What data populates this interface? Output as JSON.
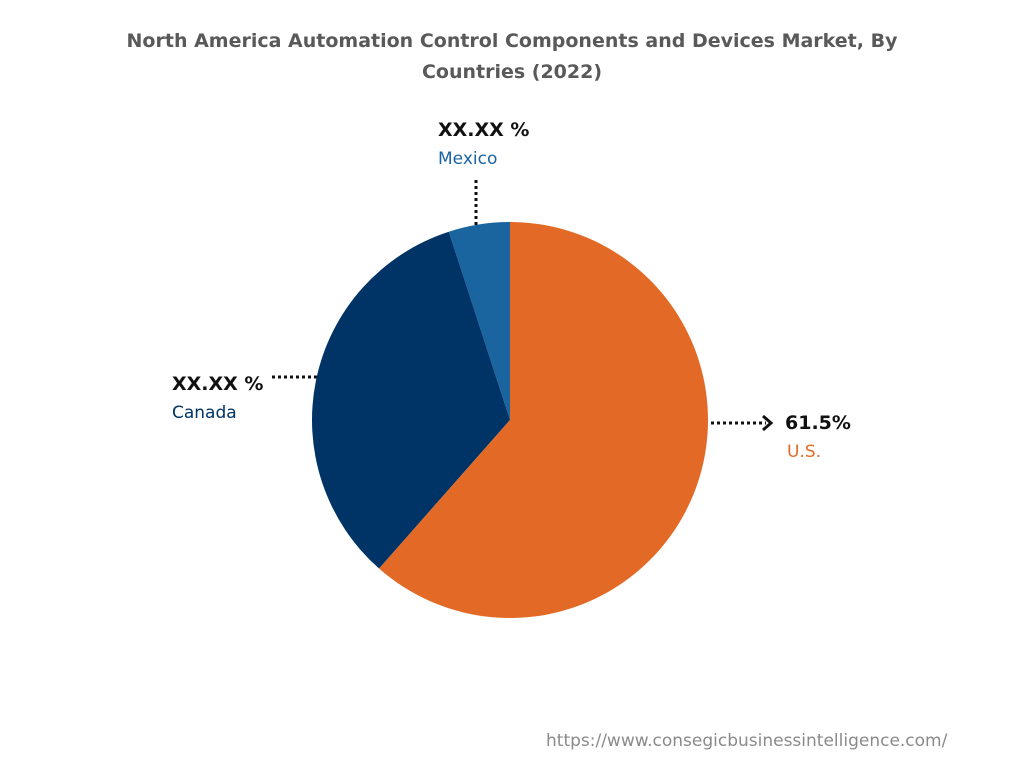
{
  "chart_data": {
    "type": "pie",
    "title": "North America Automation Control Components and Devices Market, By Countries (2022)",
    "title_lines": [
      "North America Automation Control Components and Devices Market, By",
      "Countries (2022)"
    ],
    "slices": [
      {
        "name": "U.S.",
        "value": 61.5,
        "label": "61.5%",
        "color": "#E36A26"
      },
      {
        "name": "Canada",
        "value": 33.5,
        "label": "XX.XX %",
        "color": "#003366"
      },
      {
        "name": "Mexico",
        "value": 5.0,
        "label": "XX.XX %",
        "color": "#1A64A0"
      }
    ]
  },
  "footer": {
    "url": "https://www.consegicbusinessintelligence.com/"
  }
}
